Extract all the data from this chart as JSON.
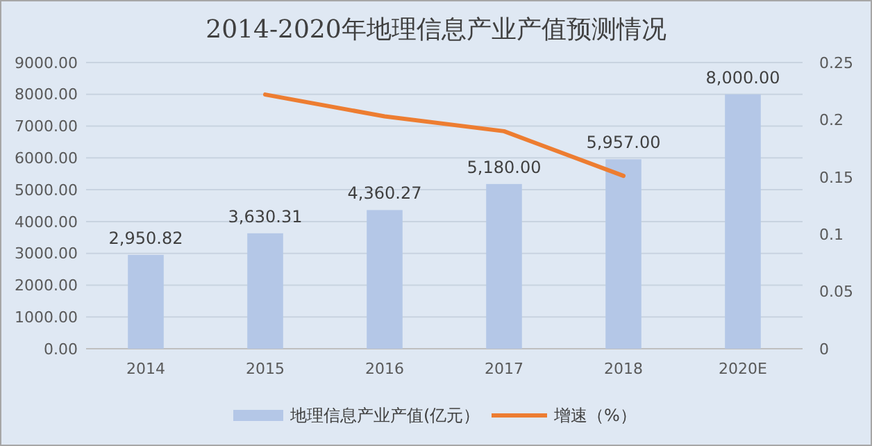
{
  "chart_data": {
    "type": "bar",
    "title": "2014-2020年地理信息产业产值预测情况",
    "categories": [
      "2014",
      "2015",
      "2016",
      "2017",
      "2018",
      "2020E"
    ],
    "series": [
      {
        "name": "地理信息产业产值(亿元）",
        "color": "#b4c7e7",
        "values": [
          2950.82,
          3630.31,
          4360.27,
          5180,
          5957,
          8000
        ],
        "value_labels": [
          "2,950.82",
          "3,630.31",
          "4,360.27",
          "5,180.00",
          "5,957.00",
          "8,000.00"
        ]
      },
      {
        "name": "增速（%）",
        "type": "line",
        "axis": "y2",
        "color": "#ed7d31",
        "values": [
          null,
          0.222,
          0.203,
          0.19,
          0.151,
          null
        ]
      }
    ],
    "ylim": [
      0,
      9000
    ],
    "yticks": [
      {
        "value": 0,
        "label": "0.00"
      },
      {
        "value": 1000,
        "label": "1000.00"
      },
      {
        "value": 2000,
        "label": "2000.00"
      },
      {
        "value": 3000,
        "label": "3000.00"
      },
      {
        "value": 4000,
        "label": "4000.00"
      },
      {
        "value": 5000,
        "label": "5000.00"
      },
      {
        "value": 6000,
        "label": "6000.00"
      },
      {
        "value": 7000,
        "label": "7000.00"
      },
      {
        "value": 8000,
        "label": "8000.00"
      },
      {
        "value": 9000,
        "label": "9000.00"
      }
    ],
    "y2lim": [
      0,
      0.25
    ],
    "y2ticks": [
      0,
      0.05,
      0.1,
      0.15,
      0.2,
      0.25
    ],
    "grid": "y",
    "legend": "bottom",
    "marker": "none",
    "line_style": "solid"
  }
}
